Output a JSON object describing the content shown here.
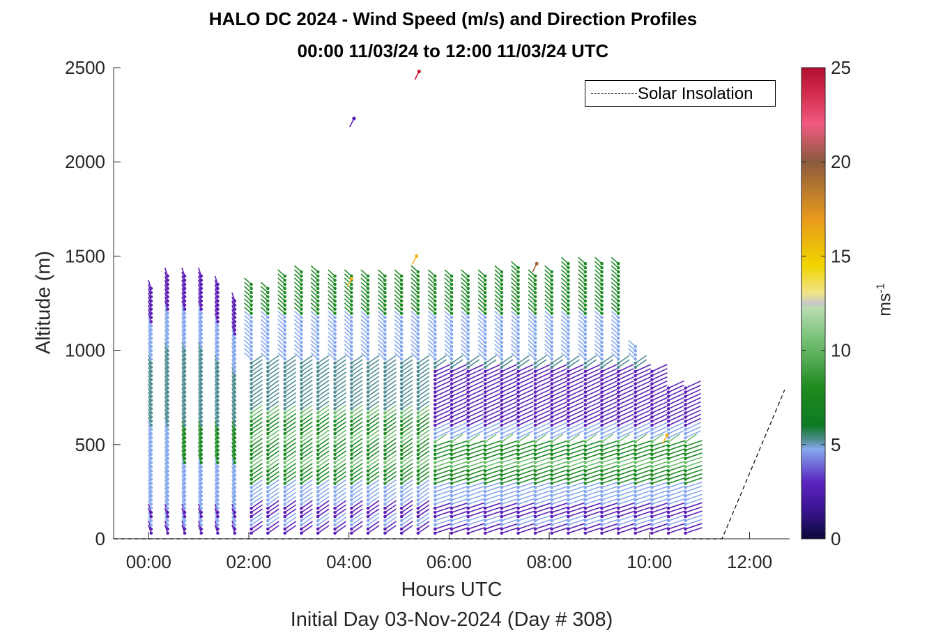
{
  "title_line1": "HALO DC 2024 - Wind Speed (m/s) and Direction Profiles",
  "title_line2": "00:00 11/03/24 to 12:00 11/03/24  UTC",
  "xlabel": "Hours UTC",
  "sublabel": "Initial Day 03-Nov-2024 (Day # 308)",
  "ylabel": "Altitude (m)",
  "colorbar_label": "ms",
  "colorbar_label_exp": "-1",
  "legend_label": "Solar Insolation",
  "chart_data": {
    "type": "scatter",
    "description": "wind barbs: each profile column has points at altitudes colored by speed, with a direction stem",
    "x_unit": "hours UTC",
    "xlim": [
      -0.7,
      12.8
    ],
    "ylim": [
      0,
      2500
    ],
    "xticks": [
      0,
      2,
      4,
      6,
      8,
      10,
      12
    ],
    "xtick_labels": [
      "00:00",
      "02:00",
      "04:00",
      "06:00",
      "08:00",
      "10:00",
      "12:00"
    ],
    "yticks": [
      0,
      500,
      1000,
      1500,
      2000,
      2500
    ],
    "colorbar": {
      "min": 0,
      "max": 25,
      "ticks": [
        0,
        5,
        10,
        15,
        20,
        25
      ]
    },
    "profile_times": [
      0.05,
      0.38,
      0.72,
      1.05,
      1.38,
      1.72,
      2.05,
      2.38,
      2.72,
      3.05,
      3.38,
      3.72,
      4.05,
      4.38,
      4.72,
      5.05,
      5.38,
      5.72,
      6.05,
      6.38,
      6.72,
      7.05,
      7.38,
      7.72,
      8.05,
      8.38,
      8.72,
      9.05,
      9.38,
      9.72,
      10.05,
      10.38,
      10.72
    ],
    "profile_tops": [
      1340,
      1400,
      1400,
      1400,
      1350,
      1270,
      1350,
      1340,
      1400,
      1430,
      1430,
      1410,
      1400,
      1400,
      1400,
      1400,
      1420,
      1410,
      1400,
      1400,
      1400,
      1420,
      1440,
      1410,
      1420,
      1480,
      1480,
      1480,
      1460,
      1020,
      900,
      800,
      800
    ],
    "isolated_points": [
      {
        "x": 4.1,
        "y": 2230,
        "speed": 3
      },
      {
        "x": 5.4,
        "y": 2480,
        "speed": 24
      },
      {
        "x": 5.35,
        "y": 1500,
        "speed": 16
      },
      {
        "x": 4.05,
        "y": 1380,
        "speed": 16
      },
      {
        "x": 7.75,
        "y": 1460,
        "speed": 20
      },
      {
        "x": 10.35,
        "y": 550,
        "speed": 16
      }
    ],
    "solar_insolation": {
      "x": [
        -0.7,
        11.45,
        12.7
      ],
      "y": [
        0,
        0,
        790
      ]
    },
    "colors": {
      "low": "#5b1fb5",
      "light_blue": "#86a8ee",
      "teal": "#4f8d93",
      "green": "#1f8a26",
      "light_green": "#6ebd6e",
      "yellow": "#f2b21c",
      "brown": "#a0643a",
      "pink": "#f2507a",
      "red": "#c41433"
    }
  }
}
